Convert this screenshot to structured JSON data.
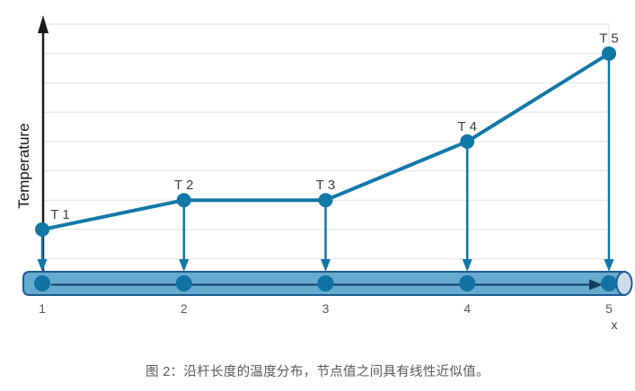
{
  "figure": {
    "caption": "图 2：沿杆长度的温度分布，节点值之间具有线性近似值。",
    "y_axis_label": "Temperature",
    "x_axis_label": "x"
  },
  "chart_data": {
    "type": "line",
    "title": "",
    "x": [
      1,
      2,
      3,
      4,
      5
    ],
    "values": [
      2,
      3,
      3,
      5,
      8
    ],
    "point_labels": [
      "T 1",
      "T 2",
      "T 3",
      "T 4",
      "T 5"
    ],
    "tick_labels": [
      "1",
      "2",
      "3",
      "4",
      "5"
    ],
    "xlabel": "x",
    "ylabel": "Temperature",
    "ylim": [
      0,
      9
    ],
    "grid": "horizontal-only, unlabeled y divisions",
    "legend": "none",
    "annotations": "blue arrows drop from each node value T1-T5 onto a cylindrical rod; arrow along rod from node 1 to node 5 marks x direction",
    "accent_color": "#1278a8",
    "rod_fill_color": "#66aacf",
    "rod_border_color": "#1d5c8e",
    "gridline_color": "#e2e2e2"
  }
}
